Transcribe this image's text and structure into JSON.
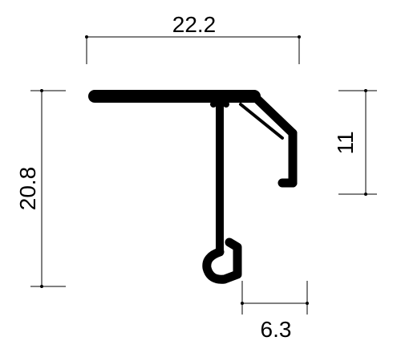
{
  "dimensions": {
    "width_top": "22.2",
    "height_left": "20.8",
    "height_right": "11",
    "width_bottom": "6.3"
  },
  "colors": {
    "line": "#000000",
    "background": "#ffffff"
  }
}
